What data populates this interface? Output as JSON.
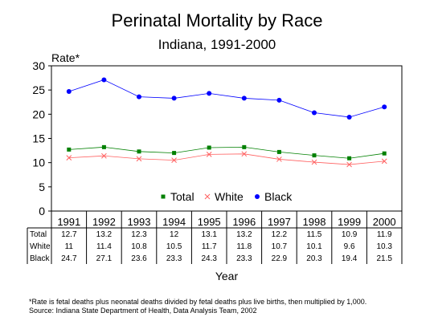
{
  "chart_data": {
    "type": "line",
    "title": "Perinatal Mortality by Race",
    "subtitle": "Indiana, 1991-2000",
    "ylabel": "Rate*",
    "xlabel": "Year",
    "ylim": [
      0,
      30
    ],
    "yticks": [
      "0",
      "5",
      "10",
      "15",
      "20",
      "25",
      "30"
    ],
    "categories": [
      "1991",
      "1992",
      "1993",
      "1994",
      "1995",
      "1996",
      "1997",
      "1998",
      "1999",
      "2000"
    ],
    "legend_position": "bottom-inside",
    "series": [
      {
        "name": "Total",
        "color": "#008000",
        "marker": "square",
        "values": [
          12.7,
          13.2,
          12.3,
          12,
          13.1,
          13.2,
          12.2,
          11.5,
          10.9,
          11.9
        ],
        "labels": [
          "12.7",
          "13.2",
          "12.3",
          "12",
          "13.1",
          "13.2",
          "12.2",
          "11.5",
          "10.9",
          "11.9"
        ]
      },
      {
        "name": "White",
        "color": "#ff6060",
        "marker": "x",
        "values": [
          11,
          11.4,
          10.8,
          10.5,
          11.7,
          11.8,
          10.7,
          10.1,
          9.6,
          10.3
        ],
        "labels": [
          "11",
          "11.4",
          "10.8",
          "10.5",
          "11.7",
          "11.8",
          "10.7",
          "10.1",
          "9.6",
          "10.3"
        ]
      },
      {
        "name": "Black",
        "color": "#0000ff",
        "marker": "circle",
        "values": [
          24.7,
          27.1,
          23.6,
          23.3,
          24.3,
          23.3,
          22.9,
          20.3,
          19.4,
          21.5
        ],
        "labels": [
          "24.7",
          "27.1",
          "23.6",
          "23.3",
          "24.3",
          "23.3",
          "22.9",
          "20.3",
          "19.4",
          "21.5"
        ]
      }
    ]
  },
  "footnotes": [
    "*Rate is fetal deaths plus neonatal deaths divided by fetal deaths plus live births, then multiplied by 1,000.",
    "Source:  Indiana State Department of Health, Data Analysis Team, 2002"
  ]
}
